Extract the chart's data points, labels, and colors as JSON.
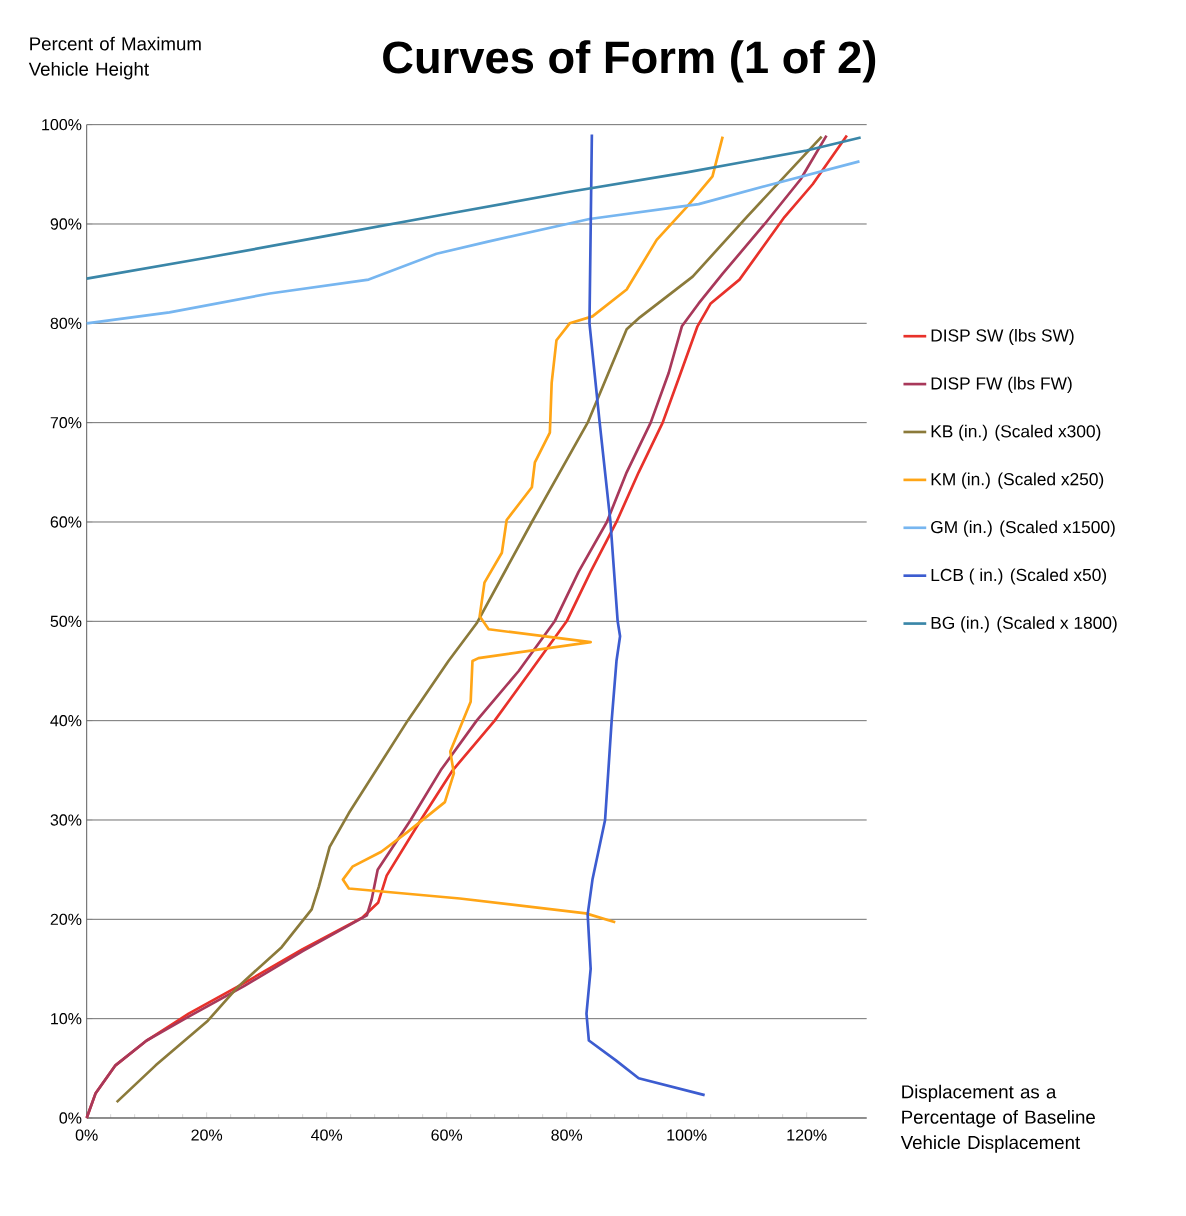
{
  "chart_data": {
    "type": "line",
    "title": "Curves of Form (1 of 2)",
    "ylabel": "Percent of Maximum Vehicle Height",
    "xlabel": "Displacement as a Percentage of Baseline Vehicle Displacement",
    "xlim": [
      0,
      130
    ],
    "ylim": [
      0,
      100
    ],
    "xticks": [
      {
        "value": 0,
        "label": "0%"
      },
      {
        "value": 20,
        "label": "20%"
      },
      {
        "value": 40,
        "label": "40%"
      },
      {
        "value": 60,
        "label": "60%"
      },
      {
        "value": 80,
        "label": "80%"
      },
      {
        "value": 100,
        "label": "100%"
      },
      {
        "value": 120,
        "label": "120%"
      }
    ],
    "yticks": [
      {
        "value": 0,
        "label": "0%"
      },
      {
        "value": 10,
        "label": "10%"
      },
      {
        "value": 20,
        "label": "20%"
      },
      {
        "value": 30,
        "label": "30%"
      },
      {
        "value": 40,
        "label": "40%"
      },
      {
        "value": 50,
        "label": "50%"
      },
      {
        "value": 60,
        "label": "60%"
      },
      {
        "value": 70,
        "label": "70%"
      },
      {
        "value": 80,
        "label": "80%"
      },
      {
        "value": 90,
        "label": "90%"
      },
      {
        "value": 100,
        "label": "100%"
      }
    ],
    "grid": "y",
    "legend": "right",
    "marker": "none",
    "line_style": "solid",
    "series": [
      {
        "name": "DISP SW (lbs SW)",
        "color": "#e8312a",
        "x": [
          0,
          1.5,
          4.8,
          10,
          17,
          26,
          36,
          46,
          48.6,
          50,
          56,
          61,
          68,
          74,
          80,
          84,
          88.3,
          92,
          96,
          99,
          101.8,
          104,
          108.8,
          116.3,
          121,
          126.7
        ],
        "values": [
          0,
          2.5,
          5.3,
          7.8,
          10.5,
          13.5,
          17,
          20.2,
          21.7,
          24.4,
          30.3,
          35,
          40,
          45,
          50,
          55,
          60,
          65,
          70,
          75,
          79.7,
          82,
          84.4,
          90.7,
          94,
          98.9
        ]
      },
      {
        "name": "DISP FW (lbs FW)",
        "color": "#a8385a",
        "x": [
          0,
          1.5,
          4.8,
          10,
          17,
          26.3,
          36,
          46.7,
          47.5,
          48.5,
          54,
          59,
          65,
          72,
          78,
          82,
          86.7,
          90,
          94,
          97,
          99.2,
          102,
          106,
          113,
          119,
          123.3
        ],
        "values": [
          0,
          2.5,
          5.3,
          7.8,
          10.2,
          13.3,
          16.8,
          20.4,
          22,
          25,
          30,
          35,
          40,
          45,
          50,
          55,
          60,
          65,
          70,
          75,
          79.7,
          82,
          85,
          90,
          94.5,
          98.9
        ]
      },
      {
        "name": "KB (in.) (Scaled x300)",
        "color": "#8b7a3a",
        "x": [
          5,
          11.5,
          20.2,
          25.2,
          32.5,
          37.5,
          38.7,
          40.5,
          43.7,
          53.5,
          60.3,
          65,
          74.2,
          83.5,
          90,
          92.2,
          101,
          110,
          122.5
        ],
        "values": [
          1.6,
          5.3,
          9.8,
          13.2,
          17.2,
          21,
          23.3,
          27.3,
          30.7,
          40,
          46,
          49.8,
          60,
          70,
          79.4,
          80.6,
          84.7,
          90.7,
          98.8
        ]
      },
      {
        "name": "KM (in.) (Scaled x250)",
        "color": "#ffa516",
        "x": [
          88.1,
          83.2,
          62.2,
          43.7,
          42.7,
          44.3,
          49.1,
          53.5,
          59.7,
          61.2,
          60.6,
          64,
          64.3,
          65.3,
          84,
          67,
          65.5,
          66.3,
          69.2,
          70,
          74.2,
          74.7,
          77.2,
          77.5,
          78.3,
          80.5,
          84.3,
          90,
          95,
          100,
          104.3,
          106
        ],
        "values": [
          19.7,
          20.6,
          22.1,
          23.1,
          24,
          25.3,
          26.8,
          28.8,
          31.8,
          34.7,
          36.9,
          41.9,
          46,
          46.3,
          47.9,
          49.2,
          50.5,
          53.9,
          56.9,
          60.2,
          63.5,
          66,
          69,
          74,
          78.3,
          80,
          80.7,
          83.4,
          88.4,
          91.7,
          94.8,
          98.8
        ]
      },
      {
        "name": "GM (in.) (Scaled x1500)",
        "color": "#77b6f0",
        "x": [
          0,
          13.8,
          30.5,
          47,
          58.3,
          66.7,
          83.8,
          102,
          113,
          128.8
        ],
        "values": [
          80,
          81.1,
          83,
          84.4,
          87,
          88.2,
          90.5,
          92,
          93.8,
          96.3
        ]
      },
      {
        "name": "LCB ( in.) (Scaled x50)",
        "color": "#3c5cd0",
        "x": [
          84.2,
          83.8,
          85.5,
          87.3,
          88.5,
          88.9,
          88.3,
          87.5,
          86.4,
          84.3,
          83.5,
          84,
          83.3,
          83.7,
          88.2,
          92,
          103
        ],
        "values": [
          99,
          80,
          70,
          60,
          50,
          48.5,
          46,
          40,
          30,
          24,
          20.5,
          15,
          10.5,
          7.8,
          5.8,
          4,
          2.3
        ]
      },
      {
        "name": "BG (in.) (Scaled x 1800)",
        "color": "#3a86a8",
        "x": [
          0,
          20,
          40,
          60,
          80,
          100,
          120,
          129
        ],
        "values": [
          84.5,
          86.6,
          88.8,
          91,
          93.2,
          95.2,
          97.4,
          98.7
        ]
      }
    ]
  }
}
